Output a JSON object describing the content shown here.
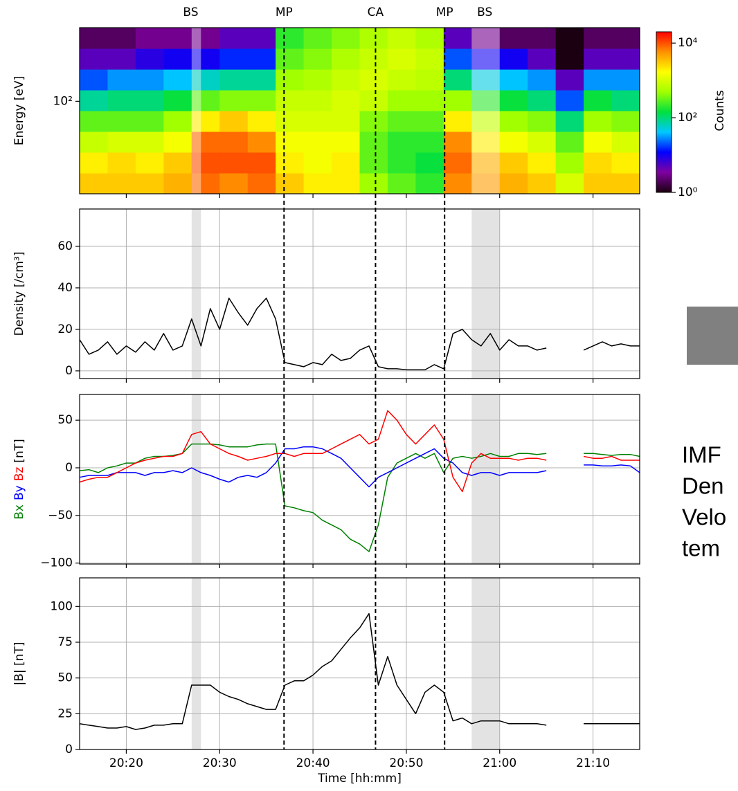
{
  "chart_data": [
    {
      "type": "heatmap",
      "ylabel": "Energy [eV]",
      "ylog": true,
      "ylim": [
        20,
        360
      ],
      "yticks": [
        {
          "value": 100,
          "label": "10²"
        }
      ],
      "grid": false,
      "events": [
        {
          "label": "BS",
          "x": 1226.9,
          "dashed": false
        },
        {
          "label": "MP",
          "x": 1236.9,
          "dashed": true
        },
        {
          "label": "CA",
          "x": 1246.7,
          "dashed": true
        },
        {
          "label": "MP",
          "x": 1254.1,
          "dashed": true
        },
        {
          "label": "BS",
          "x": 1258.4,
          "dashed": false
        }
      ],
      "shaded_spans": [
        [
          1227,
          1228
        ],
        [
          1257,
          1260
        ]
      ],
      "x_edges": [
        1215,
        1218,
        1221,
        1224,
        1227,
        1230,
        1233,
        1236,
        1239,
        1242,
        1245,
        1248,
        1251,
        1254,
        1257,
        1260,
        1263,
        1266,
        1269,
        1272,
        1275
      ],
      "y_edges": [
        20,
        28.7,
        41.2,
        59.1,
        84.8,
        121.7,
        174.6,
        250.6,
        360
      ],
      "values": [
        [
          3000,
          2000,
          800,
          300,
          80,
          20,
          5,
          2
        ],
        [
          3000,
          2500,
          1000,
          300,
          100,
          30,
          5,
          2
        ],
        [
          3000,
          2000,
          1000,
          300,
          100,
          30,
          8,
          3
        ],
        [
          4000,
          3000,
          1500,
          500,
          150,
          40,
          10,
          3
        ],
        [
          8000,
          10000,
          8000,
          2000,
          300,
          60,
          10,
          3
        ],
        [
          6000,
          10000,
          8000,
          3000,
          400,
          80,
          15,
          5
        ],
        [
          8000,
          10000,
          6000,
          2000,
          400,
          80,
          15,
          5
        ],
        [
          3000,
          2000,
          1500,
          1000,
          800,
          500,
          300,
          200
        ],
        [
          2000,
          1500,
          1500,
          1000,
          800,
          600,
          400,
          300
        ],
        [
          2000,
          2000,
          1500,
          1000,
          1000,
          800,
          600,
          400
        ],
        [
          500,
          300,
          300,
          400,
          800,
          1000,
          800,
          600
        ],
        [
          300,
          200,
          200,
          300,
          500,
          800,
          1000,
          800
        ],
        [
          200,
          150,
          200,
          300,
          500,
          700,
          800,
          600
        ],
        [
          6000,
          8000,
          6000,
          2000,
          500,
          100,
          20,
          5
        ],
        [
          5000,
          4000,
          2000,
          800,
          200,
          50,
          10,
          3
        ],
        [
          4000,
          3000,
          1500,
          500,
          150,
          40,
          10,
          2
        ],
        [
          3000,
          2000,
          1000,
          400,
          100,
          30,
          5,
          2
        ],
        [
          1000,
          500,
          300,
          100,
          20,
          5,
          1,
          1
        ],
        [
          3000,
          2500,
          1500,
          500,
          150,
          30,
          5,
          2
        ],
        [
          3000,
          2000,
          1000,
          400,
          100,
          30,
          5,
          2
        ]
      ],
      "colorbar": {
        "label": "Counts",
        "lim": [
          1,
          20000
        ],
        "ticks": [
          {
            "value": 1,
            "label": "10⁰"
          },
          {
            "value": 100,
            "label": "10²"
          },
          {
            "value": 10000,
            "label": "10⁴"
          }
        ],
        "colors": [
          "#1a0010",
          "#7f00a0",
          "#0000ff",
          "#00c8ff",
          "#00e040",
          "#a0ff00",
          "#ffff00",
          "#ff9000",
          "#ff0000"
        ]
      }
    },
    {
      "type": "line",
      "ylabel": "Density [/cm³]",
      "ylim": [
        -3.7,
        78
      ],
      "yticks": [
        0,
        20,
        40,
        60
      ],
      "grid": true,
      "color": "#000000",
      "x": [
        1215,
        1216,
        1217,
        1218,
        1219,
        1220,
        1221,
        1222,
        1223,
        1224,
        1225,
        1226,
        1227,
        1228,
        1229,
        1230,
        1231,
        1232,
        1233,
        1234,
        1235,
        1236,
        1237,
        1238,
        1239,
        1240,
        1241,
        1242,
        1243,
        1244,
        1245,
        1246,
        1247,
        1248,
        1249,
        1250,
        1251,
        1252,
        1253,
        1254,
        1255,
        1256,
        1257,
        1258,
        1259,
        1260,
        1261,
        1262,
        1263,
        1264,
        1265,
        1266,
        1267,
        1268,
        1269,
        1270,
        1271,
        1272,
        1273,
        1274,
        1275
      ],
      "values": [
        15,
        8,
        10,
        14,
        8,
        12,
        9,
        14,
        10,
        18,
        10,
        12,
        25,
        12,
        30,
        20,
        35,
        28,
        22,
        30,
        35,
        25,
        4,
        3,
        2,
        4,
        3,
        8,
        5,
        6,
        10,
        12,
        2,
        1,
        1,
        0.5,
        0.5,
        0.5,
        3,
        1,
        18,
        20,
        15,
        12,
        18,
        10,
        15,
        12,
        12,
        10,
        11,
        null,
        null,
        null,
        10,
        12,
        14,
        12,
        13,
        12,
        12
      ]
    },
    {
      "type": "line",
      "ylabel": "[nT]",
      "ylim": [
        -101,
        77
      ],
      "yticks": [
        {
          "value": -100,
          "label": "−100"
        },
        {
          "value": -50,
          "label": "−50"
        },
        0,
        50
      ],
      "grid": true,
      "x": [
        1215,
        1216,
        1217,
        1218,
        1219,
        1220,
        1221,
        1222,
        1223,
        1224,
        1225,
        1226,
        1227,
        1228,
        1229,
        1230,
        1231,
        1232,
        1233,
        1234,
        1235,
        1236,
        1237,
        1238,
        1239,
        1240,
        1241,
        1242,
        1243,
        1244,
        1245,
        1246,
        1247,
        1248,
        1249,
        1250,
        1251,
        1252,
        1253,
        1254,
        1255,
        1256,
        1257,
        1258,
        1259,
        1260,
        1261,
        1262,
        1263,
        1264,
        1265,
        1266,
        1267,
        1268,
        1269,
        1270,
        1271,
        1272,
        1273,
        1274,
        1275
      ],
      "series": [
        {
          "name": "Bx",
          "color": "#008000",
          "values": [
            -3,
            -2,
            -5,
            0,
            2,
            5,
            5,
            10,
            12,
            12,
            13,
            15,
            25,
            25,
            25,
            24,
            22,
            22,
            22,
            24,
            25,
            25,
            -40,
            -42,
            -45,
            -47,
            -55,
            -60,
            -65,
            -75,
            -80,
            -88,
            -60,
            -10,
            5,
            10,
            15,
            10,
            15,
            -5,
            10,
            12,
            10,
            12,
            15,
            12,
            12,
            15,
            15,
            14,
            15,
            null,
            null,
            null,
            15,
            15,
            14,
            13,
            14,
            14,
            12
          ]
        },
        {
          "name": "By",
          "color": "#0000ff",
          "values": [
            -10,
            -8,
            -8,
            -8,
            -5,
            -5,
            -5,
            -8,
            -5,
            -5,
            -3,
            -5,
            0,
            -5,
            -8,
            -12,
            -15,
            -10,
            -8,
            -10,
            -5,
            5,
            20,
            20,
            22,
            22,
            20,
            15,
            10,
            0,
            -10,
            -20,
            -10,
            -5,
            0,
            5,
            10,
            15,
            20,
            10,
            5,
            -5,
            -8,
            -5,
            -5,
            -8,
            -5,
            -5,
            -5,
            -5,
            -3,
            null,
            null,
            null,
            3,
            3,
            2,
            2,
            3,
            2,
            -5
          ]
        },
        {
          "name": "Bz",
          "color": "#ff0000",
          "values": [
            -15,
            -12,
            -10,
            -10,
            -5,
            0,
            5,
            8,
            10,
            12,
            12,
            15,
            35,
            38,
            25,
            20,
            15,
            12,
            8,
            10,
            12,
            15,
            15,
            12,
            15,
            15,
            15,
            20,
            25,
            30,
            35,
            25,
            30,
            60,
            50,
            35,
            25,
            35,
            45,
            30,
            -10,
            -25,
            5,
            15,
            10,
            10,
            10,
            8,
            10,
            10,
            8,
            null,
            null,
            null,
            12,
            10,
            10,
            12,
            8,
            8,
            8
          ]
        }
      ]
    },
    {
      "type": "line",
      "ylabel": "|B| [nT]",
      "xlabel": "Time [hh:mm]",
      "ylim": [
        0,
        120
      ],
      "yticks": [
        0,
        25,
        50,
        75,
        100
      ],
      "grid": true,
      "color": "#000000",
      "xlim": [
        1215,
        1275
      ],
      "xticks": [
        {
          "value": 1220,
          "label": "20:20"
        },
        {
          "value": 1230,
          "label": "20:30"
        },
        {
          "value": 1240,
          "label": "20:40"
        },
        {
          "value": 1250,
          "label": "20:50"
        },
        {
          "value": 1260,
          "label": "21:00"
        },
        {
          "value": 1270,
          "label": "21:10"
        }
      ],
      "x": [
        1215,
        1216,
        1217,
        1218,
        1219,
        1220,
        1221,
        1222,
        1223,
        1224,
        1225,
        1226,
        1227,
        1228,
        1229,
        1230,
        1231,
        1232,
        1233,
        1234,
        1235,
        1236,
        1237,
        1238,
        1239,
        1240,
        1241,
        1242,
        1243,
        1244,
        1245,
        1246,
        1247,
        1248,
        1249,
        1250,
        1251,
        1252,
        1253,
        1254,
        1255,
        1256,
        1257,
        1258,
        1259,
        1260,
        1261,
        1262,
        1263,
        1264,
        1265,
        1266,
        1267,
        1268,
        1269,
        1270,
        1271,
        1272,
        1273,
        1274,
        1275
      ],
      "values": [
        18,
        17,
        16,
        15,
        15,
        16,
        14,
        15,
        17,
        17,
        18,
        18,
        45,
        45,
        45,
        40,
        37,
        35,
        32,
        30,
        28,
        28,
        45,
        48,
        48,
        52,
        58,
        62,
        70,
        78,
        85,
        95,
        45,
        65,
        45,
        35,
        25,
        40,
        45,
        40,
        20,
        22,
        18,
        20,
        20,
        20,
        18,
        18,
        18,
        18,
        17,
        null,
        null,
        null,
        18,
        18,
        18,
        18,
        18,
        18,
        18
      ]
    }
  ],
  "side_text": [
    "IMF",
    "Den",
    "Velo",
    "tem"
  ]
}
